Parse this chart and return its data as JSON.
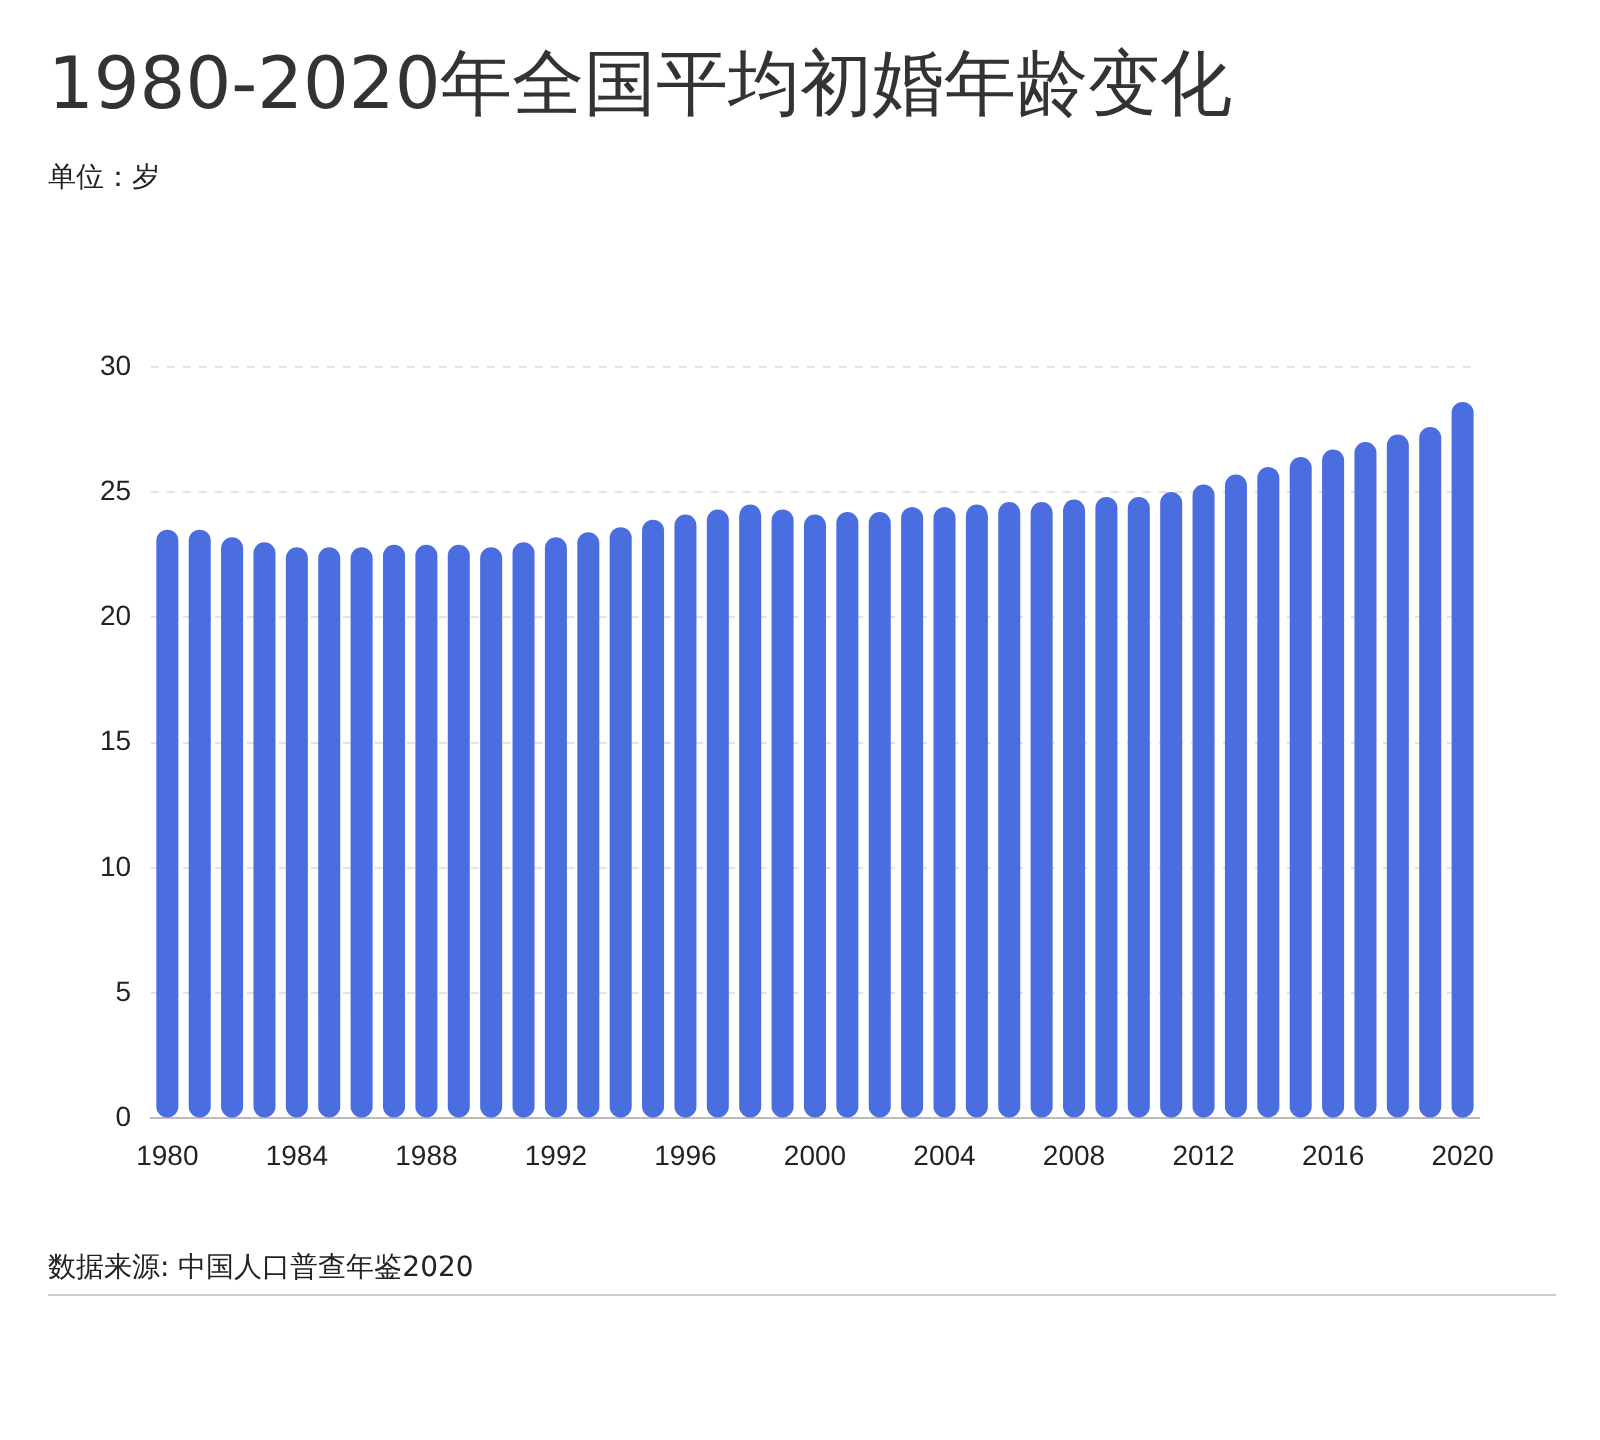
{
  "chart_data": {
    "type": "bar",
    "title": "1980-2020年全国平均初婚年龄变化",
    "subtitle": "单位：岁",
    "categories": [
      "1980",
      null,
      null,
      null,
      "1984",
      null,
      null,
      null,
      "1988",
      null,
      null,
      null,
      "1992",
      null,
      null,
      null,
      "1996",
      null,
      null,
      null,
      "2000",
      null,
      null,
      null,
      "2004",
      null,
      null,
      null,
      "2008",
      null,
      null,
      null,
      "2012",
      null,
      null,
      null,
      "2016",
      null,
      null,
      null,
      "2020"
    ],
    "values": [
      23.5,
      23.5,
      23.2,
      23.0,
      22.8,
      22.8,
      22.8,
      22.9,
      22.9,
      22.9,
      22.8,
      23.0,
      23.2,
      23.4,
      23.6,
      23.9,
      24.1,
      24.3,
      24.5,
      24.3,
      24.1,
      24.2,
      24.2,
      24.4,
      24.4,
      24.5,
      24.6,
      24.6,
      24.7,
      24.8,
      24.8,
      25.0,
      25.3,
      25.7,
      26.0,
      26.4,
      26.7,
      27.0,
      27.3,
      27.6,
      28.6
    ],
    "color": "#4a6ee0",
    "ylim": [
      0,
      30
    ],
    "yticks": [
      0,
      5,
      10,
      15,
      20,
      25,
      30
    ],
    "grid": "y",
    "annotations": [
      "数据来源: 中国人口普查年鉴2020"
    ]
  }
}
